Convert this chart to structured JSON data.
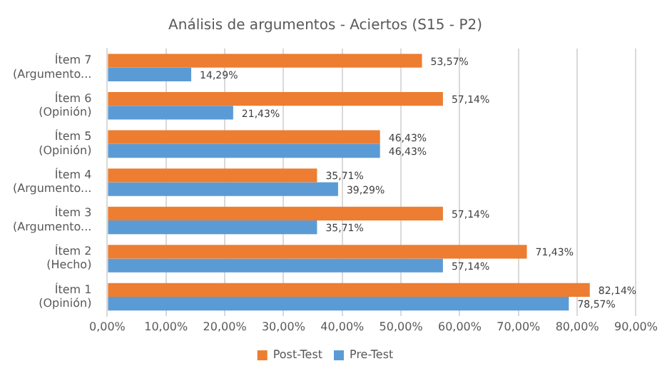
{
  "chart_data": {
    "type": "bar",
    "orientation": "horizontal",
    "title": "Análisis de argumentos - Aciertos (S15 - P2)",
    "categories": [
      "Ítem 7 (Argumento...",
      "Ítem 6 (Opinión)",
      "Ítem 5 (Opinión)",
      "Ítem 4 (Argumento...",
      "Ítem 3 (Argumento...",
      "Ítem 2 (Hecho)",
      "Ítem 1 (Opinión)"
    ],
    "series": [
      {
        "name": "Post-Test",
        "color": "#ed7d31",
        "values": [
          53.57,
          57.14,
          46.43,
          35.71,
          57.14,
          71.43,
          82.14
        ],
        "value_labels": [
          "53,57%",
          "57,14%",
          "46,43%",
          "35,71%",
          "57,14%",
          "71,43%",
          "82,14%"
        ]
      },
      {
        "name": "Pre-Test",
        "color": "#5b9bd5",
        "values": [
          14.29,
          21.43,
          46.43,
          39.29,
          35.71,
          57.14,
          78.57
        ],
        "value_labels": [
          "14,29%",
          "21,43%",
          "46,43%",
          "39,29%",
          "35,71%",
          "57,14%",
          "78,57%"
        ]
      }
    ],
    "xlim": [
      0,
      90
    ],
    "xticks": [
      {
        "value": 0,
        "label": "0,00%"
      },
      {
        "value": 10,
        "label": "10,00%"
      },
      {
        "value": 20,
        "label": "20,00%"
      },
      {
        "value": 30,
        "label": "30,00%"
      },
      {
        "value": 40,
        "label": "40,00%"
      },
      {
        "value": 50,
        "label": "50,00%"
      },
      {
        "value": 60,
        "label": "60,00%"
      },
      {
        "value": 70,
        "label": "70,00%"
      },
      {
        "value": 80,
        "label": "80,00%"
      },
      {
        "value": 90,
        "label": "90,00%"
      }
    ],
    "grid": "x",
    "legend": "bottom"
  }
}
